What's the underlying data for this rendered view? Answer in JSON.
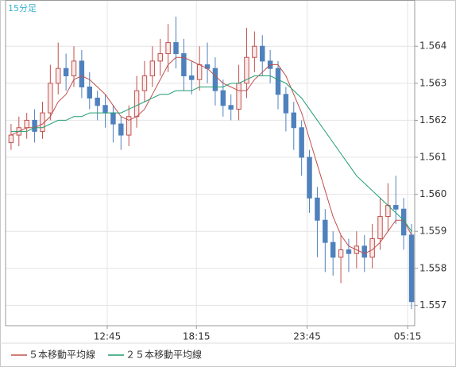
{
  "chart_data": {
    "type": "candlestick",
    "label": "15分足",
    "up_color": "#c0504d",
    "down_color": "#4f81bd",
    "open": [
      1.5614,
      1.5616,
      1.5618,
      1.562,
      1.5617,
      1.5622,
      1.563,
      1.5634,
      1.5632,
      1.5636,
      1.5629,
      1.5626,
      1.5624,
      1.5622,
      1.5619,
      1.5616,
      1.5621,
      1.5628,
      1.5632,
      1.5636,
      1.5638,
      1.5641,
      1.5638,
      1.5632,
      1.5631,
      1.5635,
      1.5634,
      1.5628,
      1.5624,
      1.5623,
      1.563,
      1.5637,
      1.564,
      1.5636,
      1.5634,
      1.5627,
      1.5622,
      1.5618,
      1.561,
      1.5599,
      1.5593,
      1.5587,
      1.5583,
      1.5585,
      1.5584,
      1.5586,
      1.5583,
      1.5588,
      1.5594,
      1.5597,
      1.5596,
      1.5589
    ],
    "high": [
      1.5619,
      1.5621,
      1.5622,
      1.5623,
      1.5625,
      1.5635,
      1.5641,
      1.5638,
      1.564,
      1.5639,
      1.5633,
      1.5628,
      1.5627,
      1.5624,
      1.5621,
      1.5624,
      1.5632,
      1.5636,
      1.564,
      1.5642,
      1.5646,
      1.5648,
      1.5642,
      1.5636,
      1.564,
      1.5641,
      1.5637,
      1.5631,
      1.5627,
      1.5635,
      1.5645,
      1.5644,
      1.5643,
      1.5639,
      1.5636,
      1.5629,
      1.5625,
      1.562,
      1.5612,
      1.5602,
      1.5596,
      1.559,
      1.5589,
      1.5588,
      1.559,
      1.5589,
      1.5592,
      1.5599,
      1.5603,
      1.5605,
      1.5599,
      1.5592
    ],
    "low": [
      1.5612,
      1.5613,
      1.5615,
      1.5614,
      1.5615,
      1.562,
      1.5627,
      1.5628,
      1.5629,
      1.5626,
      1.5623,
      1.562,
      1.5618,
      1.5614,
      1.5612,
      1.5613,
      1.5618,
      1.5625,
      1.5629,
      1.5632,
      1.5633,
      1.5634,
      1.5628,
      1.5627,
      1.5628,
      1.563,
      1.5624,
      1.5621,
      1.562,
      1.562,
      1.5626,
      1.5633,
      1.5632,
      1.563,
      1.5623,
      1.5617,
      1.5612,
      1.5605,
      1.5595,
      1.5583,
      1.5579,
      1.5578,
      1.5576,
      1.5579,
      1.558,
      1.5579,
      1.558,
      1.5585,
      1.559,
      1.5592,
      1.5585,
      1.5569
    ],
    "close": [
      1.5616,
      1.5618,
      1.562,
      1.5617,
      1.5622,
      1.563,
      1.5634,
      1.5632,
      1.5636,
      1.5629,
      1.5626,
      1.5624,
      1.5622,
      1.5619,
      1.5616,
      1.5621,
      1.5628,
      1.5632,
      1.5636,
      1.5638,
      1.5641,
      1.5638,
      1.5632,
      1.5631,
      1.5635,
      1.5634,
      1.5628,
      1.5624,
      1.5623,
      1.563,
      1.5637,
      1.564,
      1.5636,
      1.5634,
      1.5627,
      1.5622,
      1.5618,
      1.561,
      1.5599,
      1.5593,
      1.5587,
      1.5583,
      1.5585,
      1.5584,
      1.5586,
      1.5583,
      1.5588,
      1.5594,
      1.5597,
      1.5596,
      1.5589,
      1.5571
    ],
    "series": [
      {
        "name": "５本移動平均線",
        "color": "#c0504d",
        "values": [
          1.5616,
          1.5617,
          1.5618,
          1.5618,
          1.5619,
          1.5621,
          1.5625,
          1.5627,
          1.5631,
          1.5632,
          1.5631,
          1.5629,
          1.5627,
          1.5624,
          1.5621,
          1.562,
          1.5621,
          1.5623,
          1.5627,
          1.5631,
          1.5635,
          1.5637,
          1.5637,
          1.5636,
          1.5635,
          1.5634,
          1.5632,
          1.563,
          1.5629,
          1.5628,
          1.5628,
          1.5631,
          1.5633,
          1.5635,
          1.5635,
          1.5632,
          1.5627,
          1.5622,
          1.5615,
          1.5608,
          1.5601,
          1.5594,
          1.5589,
          1.5586,
          1.5585,
          1.5584,
          1.5585,
          1.5587,
          1.559,
          1.5593,
          1.5593,
          1.5589
        ]
      },
      {
        "name": "２５本移動平均線",
        "color": "#1e9e6e",
        "values": [
          1.5617,
          1.5617,
          1.5617,
          1.5618,
          1.5618,
          1.5619,
          1.562,
          1.562,
          1.5621,
          1.5621,
          1.5622,
          1.5622,
          1.5622,
          1.5622,
          1.5622,
          1.5623,
          1.5624,
          1.5625,
          1.5626,
          1.5627,
          1.5627,
          1.5628,
          1.5628,
          1.5628,
          1.5629,
          1.5629,
          1.5629,
          1.5629,
          1.563,
          1.563,
          1.5631,
          1.5632,
          1.5632,
          1.5632,
          1.5631,
          1.563,
          1.5628,
          1.5626,
          1.5623,
          1.562,
          1.5617,
          1.5614,
          1.5611,
          1.5608,
          1.5605,
          1.5603,
          1.5601,
          1.5599,
          1.5597,
          1.5595,
          1.5593,
          1.559
        ]
      }
    ],
    "xlim": [
      -0.7,
      51.4
    ],
    "xticks": [
      {
        "value": 12.25,
        "label": "12:45"
      },
      {
        "value": 23.6,
        "label": "18:15"
      },
      {
        "value": 37.7,
        "label": "23:45"
      },
      {
        "value": 50.5,
        "label": "05:15"
      }
    ],
    "ylim": [
      1.55645,
      1.56525
    ],
    "yticks": [
      1.557,
      1.558,
      1.559,
      {
        "value": 1.56,
        "label": "1.560"
      },
      1.561,
      1.562,
      1.563,
      1.564
    ],
    "grid": true
  }
}
